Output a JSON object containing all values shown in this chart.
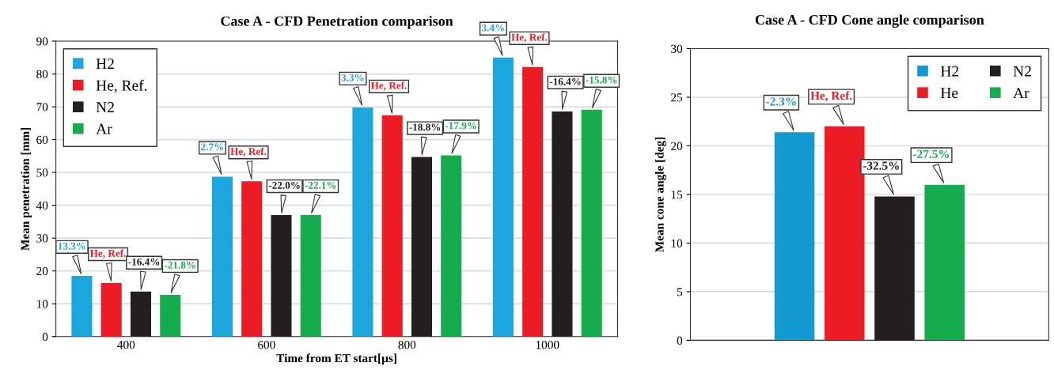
{
  "chart_data": [
    {
      "type": "bar",
      "title": "Case A - CFD Penetration comparison",
      "xlabel": "Time from ET start[µs]",
      "ylabel": "Mean penetration [mm]",
      "categories": [
        "400",
        "600",
        "800",
        "1000"
      ],
      "series": [
        {
          "name": "H2",
          "color": "#1ba6de",
          "values": [
            18.5,
            48.7,
            69.8,
            85.0
          ]
        },
        {
          "name": "He, Ref.",
          "color": "#ed1c24",
          "values": [
            16.3,
            47.3,
            67.4,
            82.1
          ]
        },
        {
          "name": "N2",
          "color": "#231f20",
          "values": [
            13.7,
            37.0,
            54.7,
            68.6
          ]
        },
        {
          "name": "Ar",
          "color": "#14ac4c",
          "values": [
            12.7,
            37.0,
            55.2,
            69.1
          ]
        }
      ],
      "annotations": [
        "13.3%",
        "2.7%",
        "3.3%",
        "3.4%",
        "He, Ref.",
        "He, Ref.",
        "He, Ref.",
        "He, Ref.",
        "-16.4%",
        "-22.0%",
        "-18.8%",
        "-16.4%",
        "-21.8%",
        "-22.1%",
        "-17.9%",
        "-15.8%"
      ],
      "ylim": [
        0,
        90
      ],
      "yticks": [
        0,
        10,
        20,
        30,
        40,
        50,
        60,
        70,
        80,
        90
      ],
      "grid": "y",
      "legend": "top left"
    },
    {
      "type": "bar",
      "title": "Case A - CFD Cone angle comparison",
      "ylabel": "Mean cone angle [deg]",
      "categories": [
        null
      ],
      "series": [
        {
          "name": "H2",
          "color": "#149ad2",
          "values": [
            21.4
          ]
        },
        {
          "name": "He",
          "color": "#ed1c24",
          "values": [
            22.0
          ]
        },
        {
          "name": "N2",
          "color": "#231f20",
          "values": [
            14.8
          ]
        },
        {
          "name": "Ar",
          "color": "#14ac4c",
          "values": [
            16.0
          ]
        }
      ],
      "annotations": [
        {
          "text": "-2.3%",
          "y": 21.4
        },
        {
          "text": "He, Ref.",
          "y": 22.0
        },
        {
          "text": "-32.5%",
          "y": 14.8
        },
        {
          "text": "-27.5%",
          "y": 16.0
        }
      ],
      "ylim": [
        0,
        30
      ],
      "yticks": [
        0,
        5,
        10,
        15,
        20,
        25,
        30
      ],
      "grid": "y",
      "legend": "top right"
    }
  ]
}
